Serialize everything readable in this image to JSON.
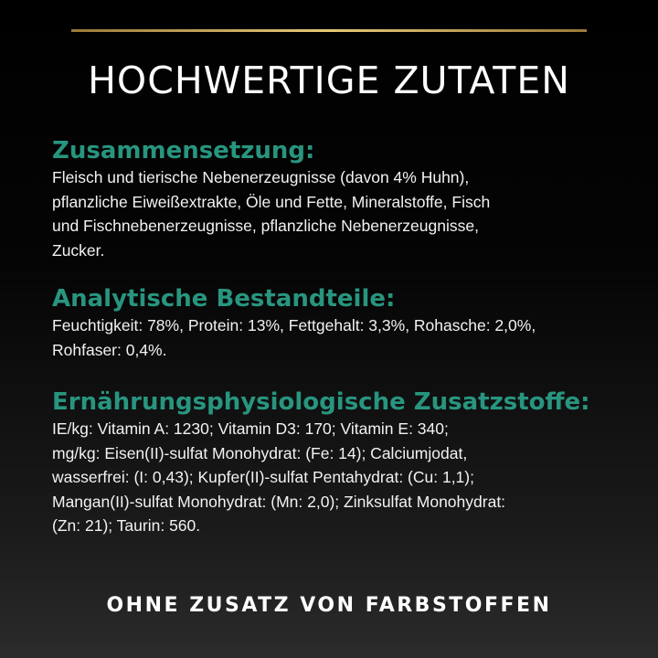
{
  "title": "HOCHWERTIGE ZUTATEN",
  "sections": [
    {
      "heading": "Zusammensetzung:",
      "lines": [
        "Fleisch und tierische Nebenerzeugnisse (davon 4% Huhn),",
        "pflanzliche Eiweißextrakte, Öle und Fette, Mineralstoffe, Fisch",
        "und Fischnebenerzeugnisse, pflanzliche Nebenerzeugnisse,",
        "Zucker."
      ]
    },
    {
      "heading": "Analytische Bestandteile:",
      "lines": [
        "Feuchtigkeit: 78%, Protein: 13%, Fettgehalt: 3,3%, Rohasche: 2,0%,",
        "Rohfaser: 0,4%."
      ]
    },
    {
      "heading": "Ernährungsphysiologische Zusatzstoffe:",
      "lines": [
        "IE/kg: Vitamin A: 1230; Vitamin D3: 170; Vitamin E: 340;",
        "mg/kg: Eisen(II)-sulfat Monohydrat: (Fe: 14); Calciumjodat,",
        "wasserfrei: (I: 0,43); Kupfer(II)-sulfat Pentahydrat: (Cu: 1,1);",
        "Mangan(II)-sulfat Monohydrat: (Mn: 2,0); Zinksulfat Monohydrat:",
        "(Zn: 21); Taurin: 560."
      ]
    }
  ],
  "footer": "OHNE ZUSATZ VON FARBSTOFFEN",
  "colors": {
    "heading": "#28957f",
    "accent_line": "#e8c777"
  }
}
